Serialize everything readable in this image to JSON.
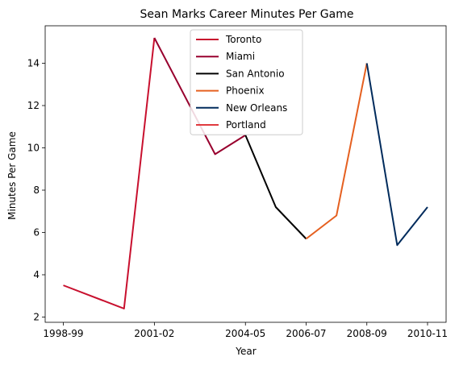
{
  "chart_data": {
    "type": "line",
    "title": "Sean Marks Career Minutes Per Game",
    "xlabel": "Year",
    "ylabel": "Minutes Per Game",
    "x_ticks": [
      "1998-99",
      "2001-02",
      "2004-05",
      "2006-07",
      "2008-09",
      "2010-11"
    ],
    "y_ticks": [
      "2",
      "4",
      "6",
      "8",
      "10",
      "12",
      "14"
    ],
    "ylim": [
      1.8,
      15.8
    ],
    "legend_position": "top-center",
    "grid": false,
    "series": [
      {
        "name": "Toronto",
        "color": "#c8102e",
        "points": [
          [
            "1998-99",
            3.5
          ],
          [
            "2000-01",
            2.4
          ],
          [
            "2001-02",
            15.2
          ]
        ]
      },
      {
        "name": "Miami",
        "color": "#98002e",
        "points": [
          [
            "2001-02",
            15.2
          ],
          [
            "2003-04",
            9.7
          ],
          [
            "2004-05",
            10.6
          ]
        ]
      },
      {
        "name": "San Antonio",
        "color": "#000000",
        "points": [
          [
            "2004-05",
            10.6
          ],
          [
            "2005-06",
            7.2
          ],
          [
            "2006-07",
            5.7
          ]
        ]
      },
      {
        "name": "Phoenix",
        "color": "#e56020",
        "points": [
          [
            "2006-07",
            5.7
          ],
          [
            "2007-08",
            6.8
          ],
          [
            "2008-09",
            14.0
          ]
        ]
      },
      {
        "name": "New Orleans",
        "color": "#002b5c",
        "points": [
          [
            "2008-09",
            14.0
          ],
          [
            "2009-10",
            5.4
          ],
          [
            "2010-11",
            7.2
          ]
        ]
      },
      {
        "name": "Portland",
        "color": "#e03a3e",
        "points": []
      }
    ]
  }
}
